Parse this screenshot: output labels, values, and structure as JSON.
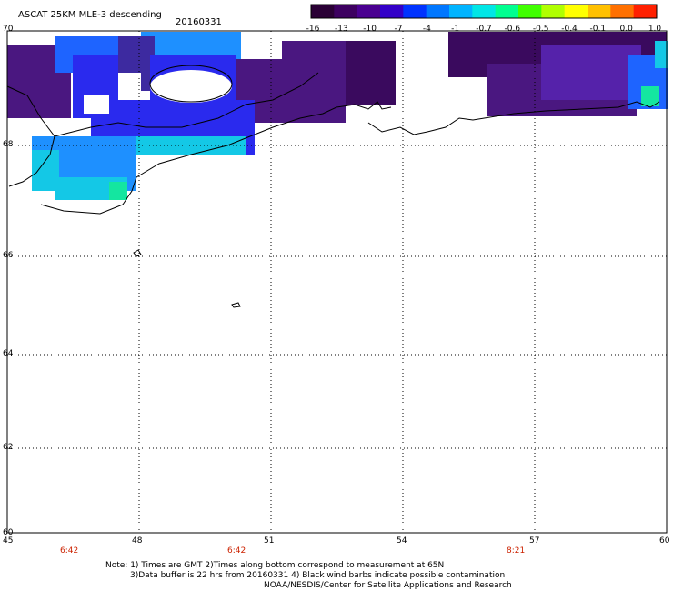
{
  "header": {
    "title": "ASCAT 25KM MLE-3 descending",
    "date": "20160331"
  },
  "colorbar": {
    "labels": [
      "-16",
      "-13",
      "-10",
      "-7",
      "-4",
      "-1",
      "-0.7",
      "-0.6",
      "-0.5",
      "-0.4",
      "-0.1",
      "0.0",
      "1.0"
    ],
    "colors": [
      "#2a0035",
      "#3d0060",
      "#4a0090",
      "#3300c8",
      "#0033ff",
      "#0077ff",
      "#00b4ff",
      "#00e6e6",
      "#00ff90",
      "#40ff00",
      "#b0ff00",
      "#ffff00",
      "#ffc000",
      "#ff7000",
      "#ff2000"
    ]
  },
  "axes": {
    "lat_labels": [
      "70",
      "68",
      "66",
      "64",
      "62",
      "60"
    ],
    "lon_labels": [
      "45",
      "48",
      "51",
      "54",
      "57",
      "60"
    ],
    "lat_range": [
      60,
      70
    ],
    "lon_range": [
      45,
      60
    ]
  },
  "times": [
    "6:42",
    "6:42",
    "8:21"
  ],
  "footer": {
    "note_line1": "Note: 1) Times are GMT 2)Times along bottom correspond to measurement at 65N",
    "note_line2": "3)Data buffer is 22 hrs from 20160331 4) Black wind barbs indicate possible contamination",
    "credit": "NOAA/NESDIS/Center for Satellite Applications and Research"
  },
  "swath_colors": {
    "deep": "#3a0a5e",
    "dark": "#4a1780",
    "purple": "#5522aa",
    "blue": "#2a2aee",
    "mid_blue": "#1e64ff",
    "light_blue": "#1e90ff",
    "cyan": "#14c8e6",
    "green": "#14e6a0"
  }
}
